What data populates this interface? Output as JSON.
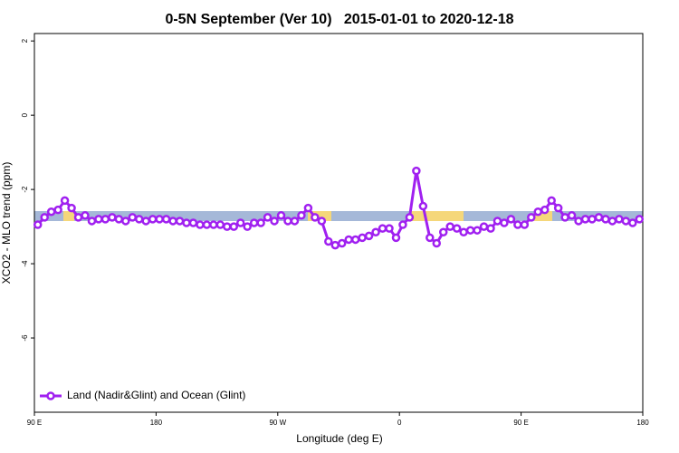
{
  "chart_data": {
    "type": "line",
    "title": "0-5N September (Ver 10)   2015-01-01 to 2020-12-18",
    "x_label": "Longitude (deg E)",
    "y_label": "XCO2 - MLO trend (ppm)",
    "x": [
      92.5,
      97.5,
      102.5,
      107.5,
      112.5,
      117.5,
      122.5,
      127.5,
      132.5,
      137.5,
      142.5,
      147.5,
      152.5,
      157.5,
      162.5,
      167.5,
      172.5,
      177.5,
      182.5,
      187.5,
      192.5,
      197.5,
      202.5,
      207.5,
      212.5,
      217.5,
      222.5,
      227.5,
      232.5,
      237.5,
      242.5,
      247.5,
      252.5,
      257.5,
      262.5,
      267.5,
      272.5,
      277.5,
      282.5,
      287.5,
      292.5,
      297.5,
      302.5,
      307.5,
      312.5,
      317.5,
      322.5,
      327.5,
      332.5,
      337.5,
      342.5,
      347.5,
      352.5,
      357.5,
      362.5,
      367.5,
      372.5,
      377.5,
      382.5,
      387.5,
      392.5,
      397.5,
      402.5,
      407.5,
      412.5,
      417.5,
      422.5,
      427.5,
      432.5,
      437.5,
      442.5,
      447.5,
      452.5,
      457.5,
      462.5,
      467.5,
      472.5,
      477.5,
      482.5,
      487.5,
      492.5,
      497.5,
      502.5,
      507.5,
      512.5,
      517.5,
      522.5,
      527.5,
      532.5,
      537.5
    ],
    "series": [
      {
        "name": "Land (Nadir&Glint) and Ocean (Glint)",
        "color": "#a020f0",
        "values": [
          -2.95,
          -2.75,
          -2.6,
          -2.55,
          -2.3,
          -2.5,
          -2.75,
          -2.7,
          -2.85,
          -2.8,
          -2.8,
          -2.75,
          -2.8,
          -2.85,
          -2.75,
          -2.8,
          -2.85,
          -2.8,
          -2.8,
          -2.8,
          -2.85,
          -2.85,
          -2.9,
          -2.9,
          -2.95,
          -2.95,
          -2.95,
          -2.95,
          -3.0,
          -3.0,
          -2.9,
          -3.0,
          -2.9,
          -2.9,
          -2.75,
          -2.85,
          -2.7,
          -2.85,
          -2.85,
          -2.7,
          -2.5,
          -2.75,
          -2.85,
          -3.4,
          -3.5,
          -3.45,
          -3.35,
          -3.35,
          -3.3,
          -3.25,
          -3.15,
          -3.05,
          -3.05,
          -3.3,
          -2.95,
          -2.75,
          -1.5,
          -2.45,
          -3.3,
          -3.45,
          -3.15,
          -3.0,
          -3.05,
          -3.15,
          -3.1,
          -3.1,
          -3.0,
          -3.05,
          -2.85,
          -2.9,
          -2.8,
          -2.95,
          -2.95,
          -2.75,
          -2.6,
          -2.55,
          -2.3,
          -2.5,
          -2.75,
          -2.7,
          -2.85,
          -2.8,
          -2.8,
          -2.75,
          -2.8,
          -2.85,
          -2.8,
          -2.85,
          -2.9,
          -2.8
        ]
      }
    ],
    "xlim": [
      90,
      540
    ],
    "xticks": [
      {
        "value": 90,
        "label": "90 E"
      },
      {
        "value": 180,
        "label": "180"
      },
      {
        "value": 270,
        "label": "90 W"
      },
      {
        "value": 360,
        "label": "0"
      },
      {
        "value": 450,
        "label": "90 E"
      },
      {
        "value": 540,
        "label": "180"
      }
    ],
    "ylim": [
      -8.0,
      2.2
    ],
    "yticks": [
      -6,
      -4,
      -2,
      0,
      2
    ],
    "legend": "bottom-left"
  }
}
